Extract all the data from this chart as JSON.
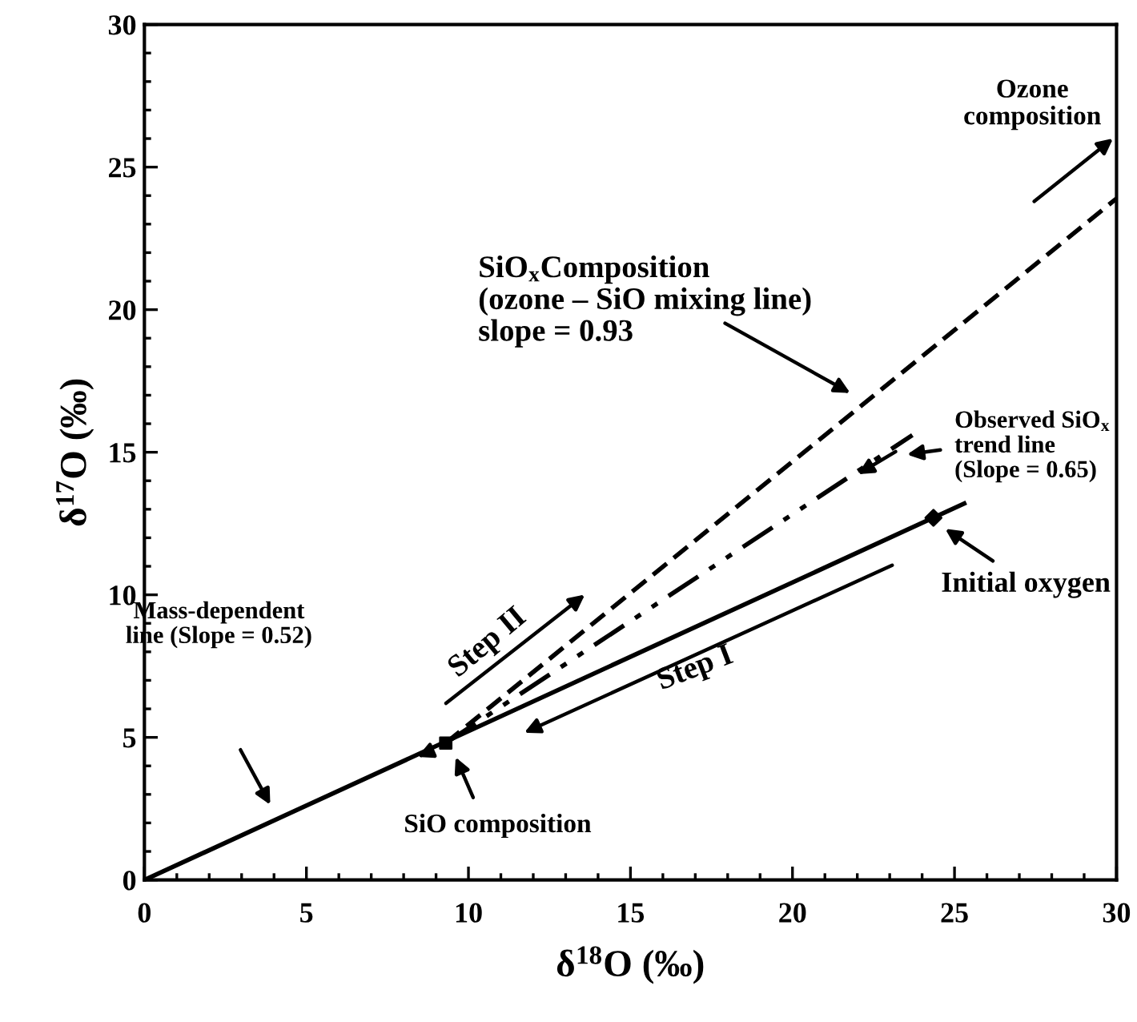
{
  "chart_data": {
    "type": "line",
    "xlabel": "δ$^{18}$O (‰)",
    "ylabel": "δ$^{17}$O (‰)",
    "series": [
      {
        "color": "#000000",
        "line_style": "solid",
        "x": [
          0,
          25.3
        ],
        "values": [
          0,
          13.2
        ]
      },
      {
        "color": "#000000",
        "line_style": "dashed",
        "x": [
          9.3,
          30
        ],
        "values": [
          4.8,
          23.9
        ]
      },
      {
        "color": "#000000",
        "line_style": "dashdot",
        "x": [
          9.3,
          23.7
        ],
        "values": [
          4.8,
          15.6
        ]
      },
      {
        "type": "scatter",
        "color": "#000000",
        "marker": "square",
        "x": [
          9.3
        ],
        "values": [
          4.8
        ]
      },
      {
        "type": "scatter",
        "color": "#000000",
        "marker": "diamond",
        "x": [
          24.35
        ],
        "values": [
          12.7
        ]
      }
    ],
    "annotations": [
      "SiO$_{x}$Composition\n(ozone – SiO mixing line)\nslope = 0.93",
      "Observed SiO$_{x}$\ntrend line\n(Slope = 0.65)",
      "Initial oxygen",
      "Ozone\ncomposition",
      "Mass-dependent\nline (Slope = 0.52)",
      "SiO composition",
      "Step II",
      "Step I"
    ],
    "xlim": [
      0,
      30
    ],
    "ylim": [
      0,
      30
    ],
    "xticks": [
      0,
      {
        "value": 1,
        "label": null
      },
      {
        "value": 2,
        "label": null
      },
      {
        "value": 3,
        "label": null
      },
      {
        "value": 4,
        "label": null
      },
      5,
      {
        "value": 6,
        "label": null
      },
      {
        "value": 7,
        "label": null
      },
      {
        "value": 8,
        "label": null
      },
      {
        "value": 9,
        "label": null
      },
      10,
      {
        "value": 11,
        "label": null
      },
      {
        "value": 12,
        "label": null
      },
      {
        "value": 13,
        "label": null
      },
      {
        "value": 14,
        "label": null
      },
      15,
      {
        "value": 16,
        "label": null
      },
      {
        "value": 17,
        "label": null
      },
      {
        "value": 18,
        "label": null
      },
      {
        "value": 19,
        "label": null
      },
      20,
      {
        "value": 21,
        "label": null
      },
      {
        "value": 22,
        "label": null
      },
      {
        "value": 23,
        "label": null
      },
      {
        "value": 24,
        "label": null
      },
      25,
      {
        "value": 26,
        "label": null
      },
      {
        "value": 27,
        "label": null
      },
      {
        "value": 28,
        "label": null
      },
      {
        "value": 29,
        "label": null
      },
      30
    ],
    "yticks": [
      0,
      {
        "value": 1,
        "label": null
      },
      {
        "value": 2,
        "label": null
      },
      {
        "value": 3,
        "label": null
      },
      {
        "value": 4,
        "label": null
      },
      5,
      {
        "value": 6,
        "label": null
      },
      {
        "value": 7,
        "label": null
      },
      {
        "value": 8,
        "label": null
      },
      {
        "value": 9,
        "label": null
      },
      10,
      {
        "value": 11,
        "label": null
      },
      {
        "value": 12,
        "label": null
      },
      {
        "value": 13,
        "label": null
      },
      {
        "value": 14,
        "label": null
      },
      15,
      {
        "value": 16,
        "label": null
      },
      {
        "value": 17,
        "label": null
      },
      {
        "value": 18,
        "label": null
      },
      {
        "value": 19,
        "label": null
      },
      20,
      {
        "value": 21,
        "label": null
      },
      {
        "value": 22,
        "label": null
      },
      {
        "value": 23,
        "label": null
      },
      {
        "value": 24,
        "label": null
      },
      25,
      {
        "value": 26,
        "label": null
      },
      {
        "value": 27,
        "label": null
      },
      {
        "value": 28,
        "label": null
      },
      {
        "value": 29,
        "label": null
      },
      30
    ],
    "grid": false
  }
}
